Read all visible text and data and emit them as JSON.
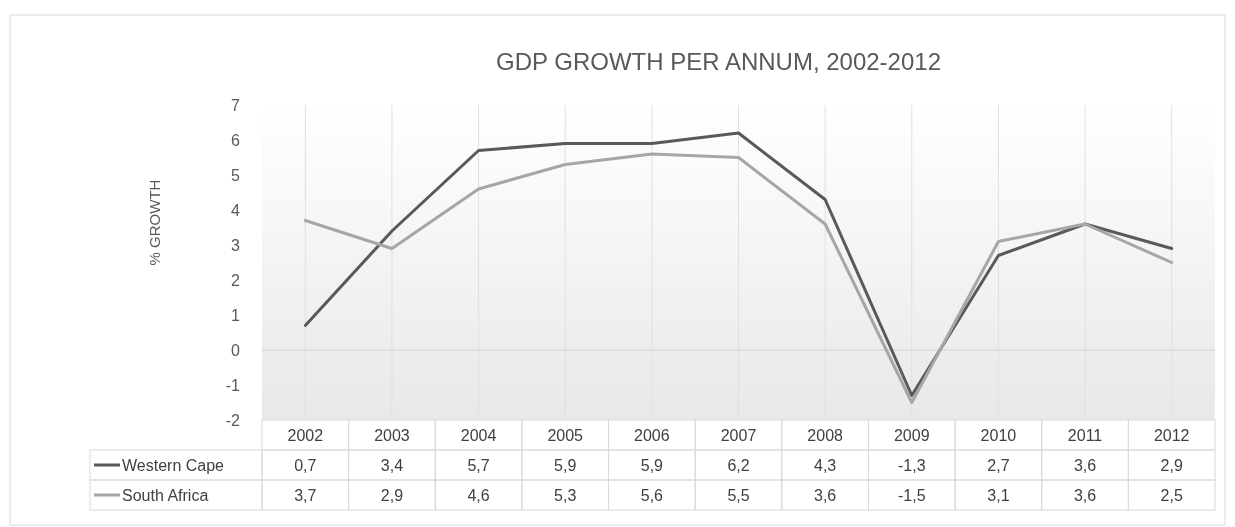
{
  "chart_data": {
    "type": "line",
    "title": "GDP GROWTH PER ANNUM, 2002-2012",
    "ylabel": "% GROWTH",
    "categories": [
      "2002",
      "2003",
      "2004",
      "2005",
      "2006",
      "2007",
      "2008",
      "2009",
      "2010",
      "2011",
      "2012"
    ],
    "series": [
      {
        "name": "Western Cape",
        "color": "#595959",
        "values": [
          0.7,
          3.4,
          5.7,
          5.9,
          5.9,
          6.2,
          4.3,
          -1.3,
          2.7,
          3.6,
          2.9
        ],
        "value_labels": [
          "0,7",
          "3,4",
          "5,7",
          "5,9",
          "5,9",
          "6,2",
          "4,3",
          "-1,3",
          "2,7",
          "3,6",
          "2,9"
        ]
      },
      {
        "name": "South Africa",
        "color": "#a6a6a6",
        "values": [
          3.7,
          2.9,
          4.6,
          5.3,
          5.6,
          5.5,
          3.6,
          -1.5,
          3.1,
          3.6,
          2.5
        ],
        "value_labels": [
          "3,7",
          "2,9",
          "4,6",
          "5,3",
          "5,6",
          "5,5",
          "3,6",
          "-1,5",
          "3,1",
          "3,6",
          "2,5"
        ]
      }
    ],
    "ylim": [
      -2,
      7
    ],
    "yticks": [
      -2,
      -1,
      0,
      1,
      2,
      3,
      4,
      5,
      6,
      7
    ],
    "grid": "x",
    "legend": "bottom",
    "marker": "none",
    "line_style": "solid"
  }
}
